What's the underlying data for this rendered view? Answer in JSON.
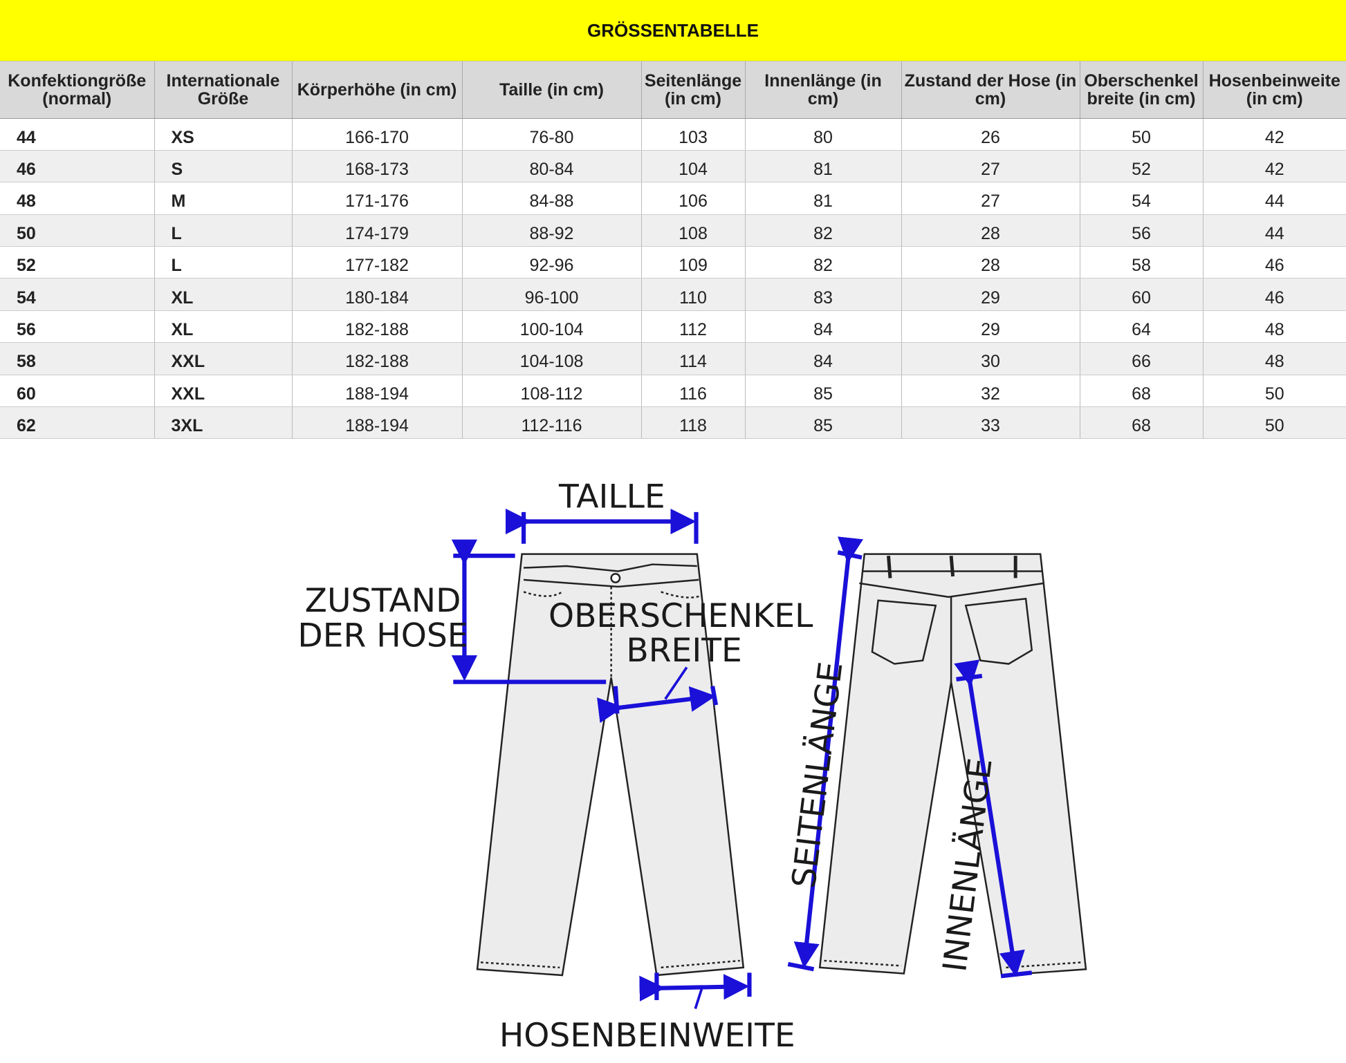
{
  "title": "GRÖSSENTABELLE",
  "headers": [
    "Konfektiongröße (normal)",
    "Internationale Größe",
    "Körperhöhe (in cm)",
    "Taille (in cm)",
    "Seitenlänge (in cm)",
    "Innenlänge (in cm)",
    "Zustand der Hose  (in cm)",
    "Oberschenkel breite  (in cm)",
    "Hosenbeinweite (in cm)"
  ],
  "rows": [
    [
      "44",
      "XS",
      "166-170",
      "76-80",
      "103",
      "80",
      "26",
      "50",
      "42"
    ],
    [
      "46",
      "S",
      "168-173",
      "80-84",
      "104",
      "81",
      "27",
      "52",
      "42"
    ],
    [
      "48",
      "M",
      "171-176",
      "84-88",
      "106",
      "81",
      "27",
      "54",
      "44"
    ],
    [
      "50",
      "L",
      "174-179",
      "88-92",
      "108",
      "82",
      "28",
      "56",
      "44"
    ],
    [
      "52",
      "L",
      "177-182",
      "92-96",
      "109",
      "82",
      "28",
      "58",
      "46"
    ],
    [
      "54",
      "XL",
      "180-184",
      "96-100",
      "110",
      "83",
      "29",
      "60",
      "46"
    ],
    [
      "56",
      "XL",
      "182-188",
      "100-104",
      "112",
      "84",
      "29",
      "64",
      "48"
    ],
    [
      "58",
      "XXL",
      "182-188",
      "104-108",
      "114",
      "84",
      "30",
      "66",
      "48"
    ],
    [
      "60",
      "XXL",
      "188-194",
      "108-112",
      "116",
      "85",
      "32",
      "68",
      "50"
    ],
    [
      "62",
      "3XL",
      "188-194",
      "112-116",
      "118",
      "85",
      "33",
      "68",
      "50"
    ]
  ],
  "diagram": {
    "taille": "TAILLE",
    "zustand_1": "ZUSTAND",
    "zustand_2": "DER HOSE",
    "oberschenkel_1": "OBERSCHENKEL",
    "oberschenkel_2": "BREITE",
    "hosenbeinweite": "HOSENBEINWEITE",
    "seitenlaenge": "SEITENLÄNGE",
    "innenlaenge": "INNENLÄNGE"
  },
  "colors": {
    "title_bg": "#ffff00",
    "header_bg": "#d9d9d9",
    "arrow": "#1a10d8"
  }
}
